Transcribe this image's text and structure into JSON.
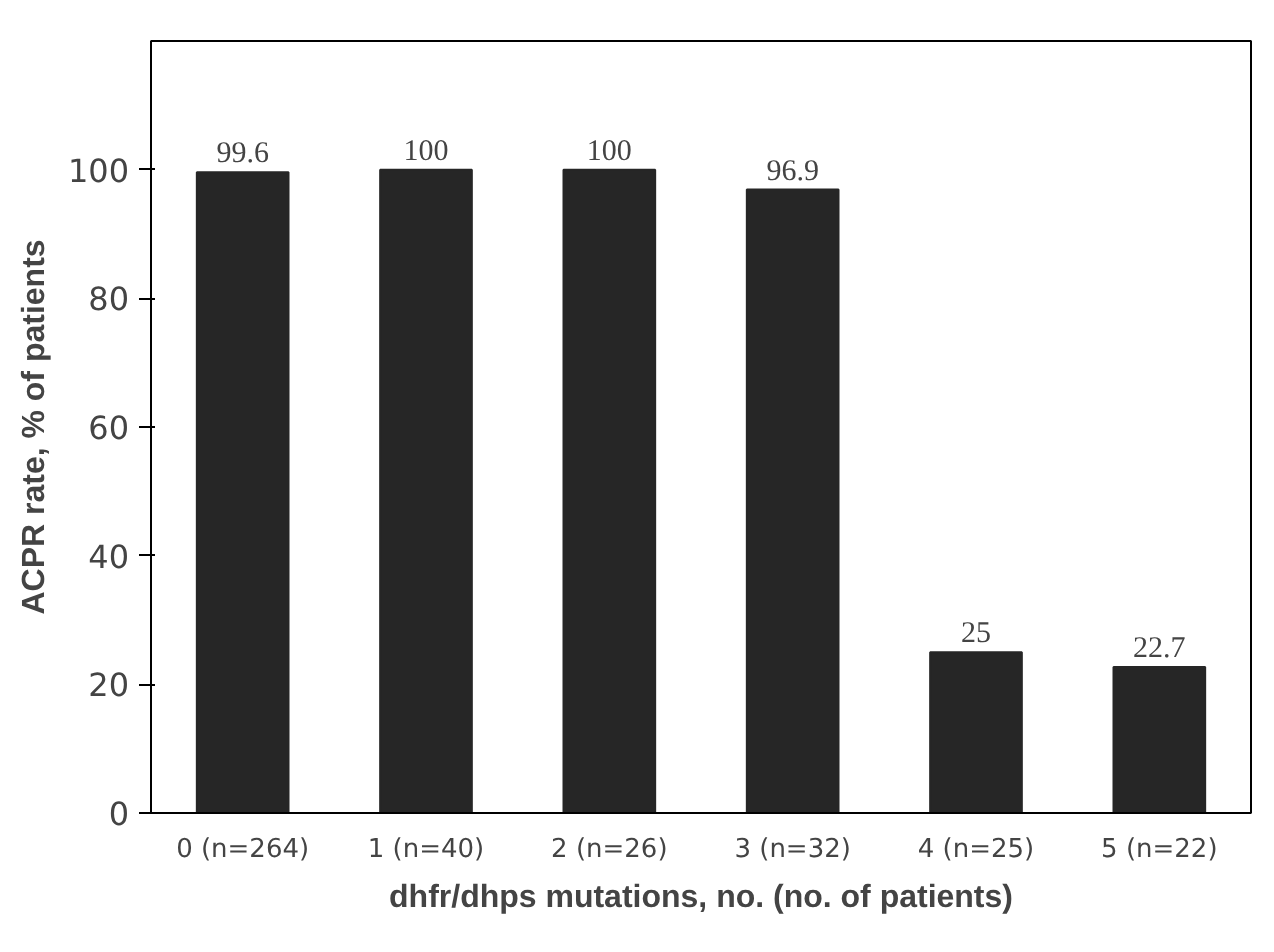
{
  "chart_data": {
    "type": "bar",
    "xlabel": "dhfr/dhps mutations, no. (no. of patients)",
    "ylabel": "ACPR rate, % of patients",
    "categories": [
      "0 (n=264)",
      "1 (n=40)",
      "2 (n=26)",
      "3 (n=32)",
      "4 (n=25)",
      "5 (n=22)"
    ],
    "values": [
      99.6,
      100,
      100,
      96.9,
      25,
      22.7
    ],
    "color": "#262626",
    "ylim": [
      0,
      120
    ],
    "yticks": [
      0,
      20,
      40,
      60,
      80,
      100
    ],
    "grid": false,
    "data_labels": true
  }
}
